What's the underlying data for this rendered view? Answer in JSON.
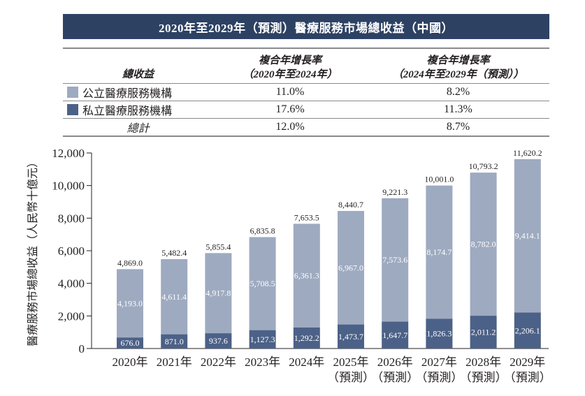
{
  "title": "2020年至2029年（預測）醫療服務市場總收益（中國）",
  "cagr_table": {
    "header": {
      "col0": "總收益",
      "col1_line1": "複合年增長率",
      "col1_line2": "（2020年至2024年）",
      "col2_line1": "複合年增長率",
      "col2_line2": "（2024年至2029年（預測））"
    },
    "rows": [
      {
        "label": "公立醫療服務機構",
        "swatch": "#9eaac0",
        "cagr_2020_2024": "11.0%",
        "cagr_2024_2029": "8.2%"
      },
      {
        "label": "私立醫療服務機構",
        "swatch": "#4c6187",
        "cagr_2020_2024": "17.6%",
        "cagr_2024_2029": "11.3%"
      },
      {
        "label": "總計",
        "cagr_2020_2024": "12.0%",
        "cagr_2024_2029": "8.7%"
      }
    ]
  },
  "chart_data": {
    "type": "bar",
    "stacked": true,
    "title": "2020年至2029年（預測）醫療服務市場總收益（中國）",
    "ylabel": "醫療服務市場總收益（人民幣十億元）",
    "xlabel": "",
    "ylim": [
      0,
      12000
    ],
    "yticks": [
      0,
      2000,
      4000,
      6000,
      8000,
      10000,
      12000
    ],
    "ytick_labels": [
      "0",
      "2,000",
      "4,000",
      "6,000",
      "8,000",
      "10,000",
      "12,000"
    ],
    "grid": false,
    "categories": [
      "2020年",
      "2021年",
      "2022年",
      "2023年",
      "2024年",
      "2025年",
      "2026年",
      "2027年",
      "2028年",
      "2029年"
    ],
    "category_sublabels": [
      "",
      "",
      "",
      "",
      "",
      "（預測）",
      "（預測）",
      "（預測）",
      "（預測）",
      "（預測）"
    ],
    "series": [
      {
        "name": "私立醫療服務機構",
        "color": "#4c6187",
        "values": [
          676.0,
          871.0,
          937.6,
          1127.3,
          1292.2,
          1473.7,
          1647.7,
          1826.3,
          2011.2,
          2206.1
        ],
        "labels": [
          "676.0",
          "871.0",
          "937.6",
          "1,127.3",
          "1,292.2",
          "1,473.7",
          "1,647.7",
          "1,826.3",
          "2,011.2",
          "2,206.1"
        ]
      },
      {
        "name": "公立醫療服務機構",
        "color": "#9eaac0",
        "values": [
          4193.0,
          4611.4,
          4917.8,
          5708.5,
          6361.3,
          6967.0,
          7573.6,
          8174.7,
          8782.0,
          9414.1
        ],
        "labels": [
          "4,193.0",
          "4,611.4",
          "4,917.8",
          "5,708.5",
          "6,361.3",
          "6,967.0",
          "7,573.6",
          "8,174.7",
          "8,782.0",
          "9,414.1"
        ]
      }
    ],
    "totals": [
      4869.0,
      5482.4,
      5855.4,
      6835.8,
      7653.5,
      8440.7,
      9221.3,
      10001.0,
      10793.2,
      11620.2
    ],
    "total_labels": [
      "4,869.0",
      "5,482.4",
      "5,855.4",
      "6,835.8",
      "7,653.5",
      "8,440.7",
      "9,221.3",
      "10,001.0",
      "10,793.2",
      "11,620.2"
    ],
    "legend": "table-above"
  }
}
